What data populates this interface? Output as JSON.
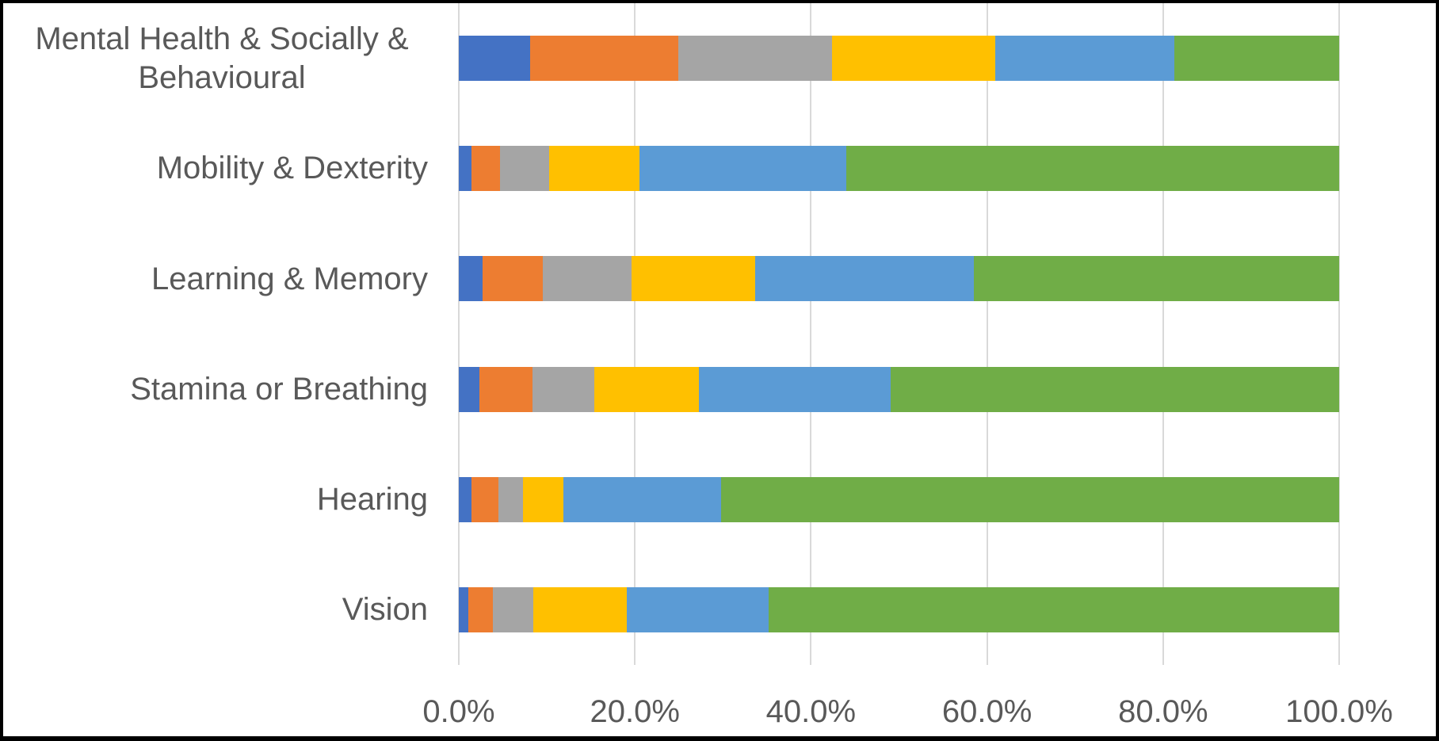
{
  "chart_data": {
    "type": "bar",
    "orientation": "horizontal",
    "stacked": true,
    "stacked_total_percent": 100,
    "title": "",
    "xlabel": "",
    "ylabel": "",
    "legend": "none",
    "grid": "vertical-major",
    "categories": [
      "Mental Health & Socially & Behavioural",
      "Mobility & Dexterity",
      "Learning & Memory",
      "Stamina or Breathing",
      "Hearing",
      "Vision"
    ],
    "series": [
      {
        "name": "blue",
        "color": "#4472C4",
        "values": [
          8.1,
          1.4,
          2.7,
          2.3,
          1.4,
          1.1
        ]
      },
      {
        "name": "orange",
        "color": "#ED7D31",
        "values": [
          16.8,
          3.3,
          6.8,
          6.1,
          3.1,
          2.8
        ]
      },
      {
        "name": "gray",
        "color": "#A5A5A5",
        "values": [
          17.5,
          5.6,
          10.1,
          7.0,
          2.8,
          4.6
        ]
      },
      {
        "name": "yellow",
        "color": "#FFC000",
        "values": [
          18.5,
          10.2,
          14.1,
          11.9,
          4.6,
          10.6
        ]
      },
      {
        "name": "light-blue",
        "color": "#5B9BD5",
        "values": [
          20.4,
          23.5,
          24.8,
          21.8,
          17.9,
          16.1
        ]
      },
      {
        "name": "green",
        "color": "#70AD47",
        "values": [
          18.7,
          56.0,
          41.5,
          50.9,
          70.2,
          64.8
        ]
      }
    ],
    "x_axis": {
      "min": 0,
      "max": 100,
      "tick_step": 20,
      "tick_labels": [
        "0.0%",
        "20.0%",
        "40.0%",
        "60.0%",
        "80.0%",
        "100.0%"
      ]
    }
  },
  "styles": {
    "text_color": "#595959",
    "gridline_color": "#D9D9D9",
    "background": "#FFFFFF",
    "border_color": "#000000"
  }
}
